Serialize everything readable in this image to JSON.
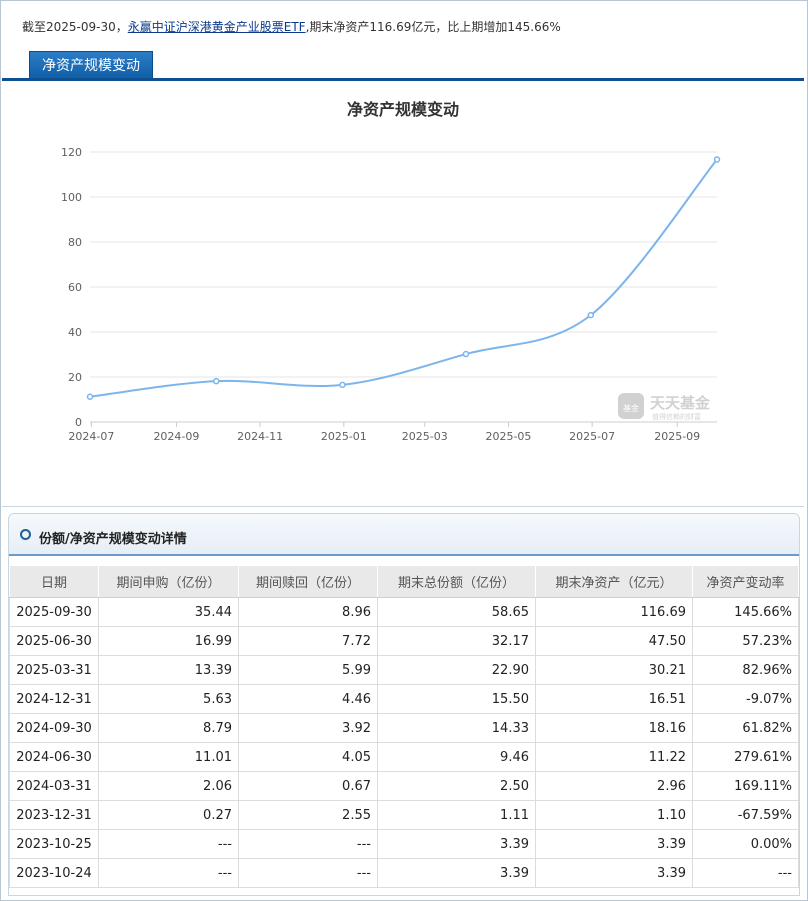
{
  "summary": {
    "prefix": "截至2025-09-30，",
    "fund_link": "永赢中证沪深港黄金产业股票ETF",
    "suffix": ",期末净资产116.69亿元，比上期增加145.66%"
  },
  "tab": {
    "label": "净资产规模变动"
  },
  "chart_title": "净资产规模变动",
  "watermark": {
    "brand": "天天基金",
    "tag": "基金",
    "sub": "值得信赖的财富"
  },
  "colors": {
    "line": "#7cb5ec",
    "tab": "#1668b6",
    "grid": "#e6e6e6"
  },
  "chart_data": {
    "type": "line",
    "title": "净资产规模变动",
    "ylim": [
      0,
      120
    ],
    "yticks": [
      0,
      20,
      40,
      60,
      80,
      100,
      120
    ],
    "xlim": [
      "2024-06-30",
      "2025-09-30"
    ],
    "xticks": [
      "2024-07",
      "2024-09",
      "2024-11",
      "2025-01",
      "2025-03",
      "2025-05",
      "2025-07",
      "2025-09"
    ],
    "grid": true,
    "series": [
      {
        "x": [
          "2024-06-30",
          "2024-09-30",
          "2024-12-31",
          "2025-03-31",
          "2025-06-30",
          "2025-09-30"
        ],
        "values": [
          11.22,
          18.16,
          16.51,
          30.21,
          47.5,
          116.69
        ]
      }
    ]
  },
  "detail": {
    "title": "份额/净资产规模变动详情",
    "columns": [
      "日期",
      "期间申购（亿份）",
      "期间赎回（亿份）",
      "期末总份额（亿份）",
      "期末净资产（亿元）",
      "净资产变动率"
    ],
    "rows": [
      [
        "2025-09-30",
        "35.44",
        "8.96",
        "58.65",
        "116.69",
        "145.66%"
      ],
      [
        "2025-06-30",
        "16.99",
        "7.72",
        "32.17",
        "47.50",
        "57.23%"
      ],
      [
        "2025-03-31",
        "13.39",
        "5.99",
        "22.90",
        "30.21",
        "82.96%"
      ],
      [
        "2024-12-31",
        "5.63",
        "4.46",
        "15.50",
        "16.51",
        "-9.07%"
      ],
      [
        "2024-09-30",
        "8.79",
        "3.92",
        "14.33",
        "18.16",
        "61.82%"
      ],
      [
        "2024-06-30",
        "11.01",
        "4.05",
        "9.46",
        "11.22",
        "279.61%"
      ],
      [
        "2024-03-31",
        "2.06",
        "0.67",
        "2.50",
        "2.96",
        "169.11%"
      ],
      [
        "2023-12-31",
        "0.27",
        "2.55",
        "1.11",
        "1.10",
        "-67.59%"
      ],
      [
        "2023-10-25",
        "---",
        "---",
        "3.39",
        "3.39",
        "0.00%"
      ],
      [
        "2023-10-24",
        "---",
        "---",
        "3.39",
        "3.39",
        "---"
      ]
    ]
  }
}
